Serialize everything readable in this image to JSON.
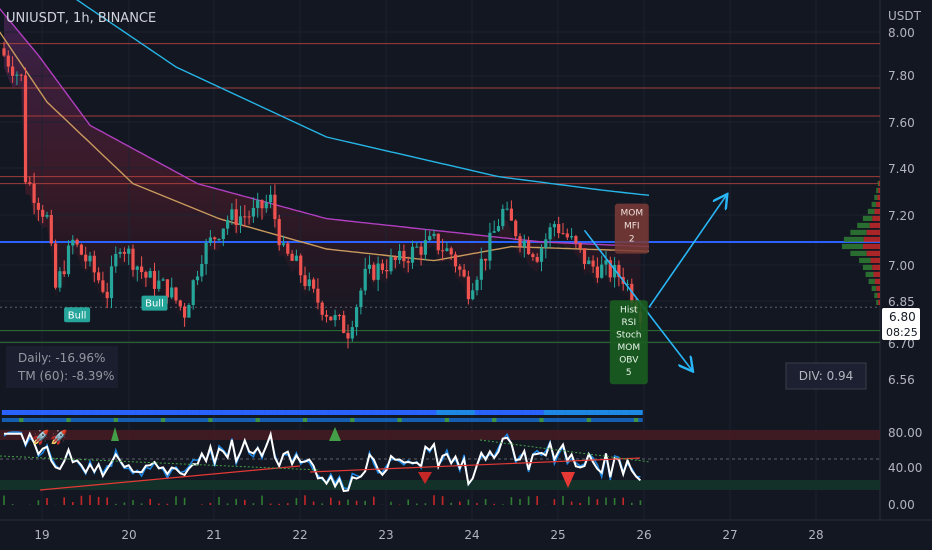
{
  "header": {
    "symbol_label": "UNIUSDT, 1h, BINANCE"
  },
  "chart_data": {
    "type": "candlestick",
    "currency": "USDT",
    "price_axis": {
      "ticks": [
        "8.00",
        "7.80",
        "7.60",
        "7.40",
        "7.20",
        "7.00",
        "6.85",
        "6.70",
        "6.56"
      ],
      "range": [
        6.5,
        8.05
      ]
    },
    "price_tags": {
      "last": "6.80",
      "countdown": "08:25"
    },
    "time_axis": {
      "labels": [
        "19",
        "20",
        "21",
        "22",
        "23",
        "24",
        "25",
        "26",
        "27",
        "28"
      ]
    },
    "horizontal_levels": {
      "resistance_red": [
        7.95,
        7.76,
        7.64,
        7.38,
        7.35
      ],
      "support_green": [
        6.72,
        6.67
      ],
      "key_blue": 7.1
    },
    "moving_averages": [
      {
        "color": "#26b5e6",
        "points": [
          [
            -1,
            8.33
          ],
          [
            12,
            8.2
          ],
          [
            40,
            7.85
          ],
          [
            75,
            7.55
          ],
          [
            115,
            7.38
          ],
          [
            140,
            7.32
          ],
          [
            150,
            7.3
          ]
        ]
      },
      {
        "color": "#b03fbf",
        "points": [
          [
            -1,
            8.1
          ],
          [
            8,
            7.9
          ],
          [
            20,
            7.6
          ],
          [
            45,
            7.35
          ],
          [
            75,
            7.2
          ],
          [
            105,
            7.14
          ],
          [
            125,
            7.1
          ],
          [
            150,
            7.08
          ]
        ]
      },
      {
        "color": "#c99a5e",
        "points": [
          [
            -1,
            8.0
          ],
          [
            10,
            7.7
          ],
          [
            30,
            7.35
          ],
          [
            50,
            7.2
          ],
          [
            75,
            7.07
          ],
          [
            100,
            7.02
          ],
          [
            118,
            7.08
          ],
          [
            150,
            7.06
          ]
        ]
      }
    ],
    "close_anchors": [
      [
        0,
        7.9
      ],
      [
        4,
        7.8
      ],
      [
        5,
        7.38
      ],
      [
        10,
        7.2
      ],
      [
        12,
        6.9
      ],
      [
        16,
        7.1
      ],
      [
        20,
        7.0
      ],
      [
        24,
        6.88
      ],
      [
        27,
        7.1
      ],
      [
        33,
        6.95
      ],
      [
        38,
        6.9
      ],
      [
        42,
        6.8
      ],
      [
        46,
        7.05
      ],
      [
        52,
        7.2
      ],
      [
        58,
        7.22
      ],
      [
        62,
        7.28
      ],
      [
        65,
        7.05
      ],
      [
        68,
        7.0
      ],
      [
        72,
        6.87
      ],
      [
        76,
        6.78
      ],
      [
        80,
        6.72
      ],
      [
        84,
        6.95
      ],
      [
        88,
        7.0
      ],
      [
        92,
        7.02
      ],
      [
        96,
        7.07
      ],
      [
        100,
        7.1
      ],
      [
        104,
        7.05
      ],
      [
        108,
        6.9
      ],
      [
        112,
        7.05
      ],
      [
        116,
        7.23
      ],
      [
        120,
        7.12
      ],
      [
        124,
        7.05
      ],
      [
        128,
        7.18
      ],
      [
        132,
        7.1
      ],
      [
        136,
        7.0
      ],
      [
        140,
        6.98
      ],
      [
        144,
        6.95
      ],
      [
        148,
        6.8
      ]
    ],
    "drawings": [
      {
        "type": "arrow",
        "from": [
          135,
          7.15
        ],
        "to": [
          160,
          6.55
        ],
        "color": "#29b6f6"
      },
      {
        "type": "arrow",
        "from": [
          150,
          6.82
        ],
        "to": [
          168,
          7.3
        ],
        "color": "#29b6f6"
      }
    ],
    "signal_labels": [
      {
        "text": "Bull",
        "bar": 17,
        "price": 6.82,
        "color": "#26a69a"
      },
      {
        "text": "Bull",
        "bar": 35,
        "price": 6.87,
        "color": "#26a69a"
      }
    ],
    "divergence_boxes": {
      "bearish": {
        "lines": [
          "MOM",
          "MFI",
          "2"
        ],
        "bar": 146,
        "price": 7.17
      },
      "bullish": {
        "lines": [
          "Hist",
          "RSI",
          "Stoch",
          "MOM",
          "OBV",
          "5"
        ],
        "bar": 146,
        "price": 6.67
      }
    },
    "stats_overlay": {
      "daily": "Daily: -16.96%",
      "tm": "TM (60):  -8.39%"
    },
    "div_readout": "DIV: 0.94",
    "volume_profile": {
      "prices": [
        7.35,
        7.32,
        7.29,
        7.26,
        7.23,
        7.2,
        7.17,
        7.14,
        7.11,
        7.08,
        7.05,
        7.02,
        6.99,
        6.96,
        6.93,
        6.9,
        6.87,
        6.84
      ],
      "values": [
        0.06,
        0.1,
        0.15,
        0.22,
        0.32,
        0.45,
        0.6,
        0.78,
        0.95,
        1.0,
        0.78,
        0.55,
        0.45,
        0.38,
        0.3,
        0.22,
        0.15,
        0.1
      ],
      "colors": [
        "#2e7d32",
        "#c62828"
      ]
    },
    "oscillator": {
      "ticks": [
        "80.00",
        "40.00",
        "0.00"
      ],
      "levels": {
        "overbought": 80,
        "mid": 54,
        "oversold": 20
      }
    }
  }
}
